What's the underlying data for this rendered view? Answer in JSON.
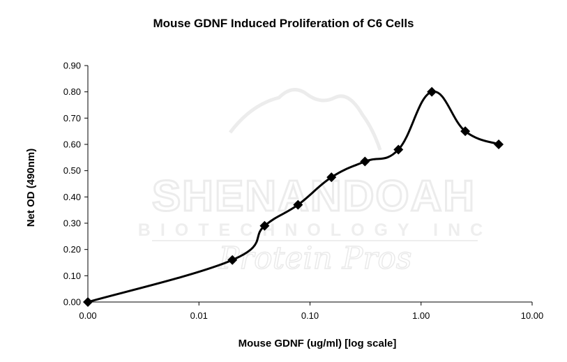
{
  "chart_data": {
    "type": "line",
    "title": "Mouse GDNF Induced Proliferation of C6 Cells",
    "xlabel": "Mouse GDNF (ug/ml) [log scale]",
    "ylabel": "Net OD (490nm)",
    "x_scale": "log",
    "x_tick_labels": [
      "0.00",
      "0.01",
      "0.10",
      "1.00",
      "10.00"
    ],
    "y_tick_labels": [
      "0.00",
      "0.10",
      "0.20",
      "0.30",
      "0.40",
      "0.50",
      "0.60",
      "0.70",
      "0.80",
      "0.90"
    ],
    "ylim": [
      0,
      0.9
    ],
    "grid": false,
    "marker": "diamond",
    "line_style": "smoothed",
    "series": [
      {
        "x": [
          0.001,
          0.02,
          0.039,
          0.078,
          0.156,
          0.3125,
          0.625,
          1.25,
          2.5,
          5.0
        ],
        "y": [
          0.0,
          0.16,
          0.29,
          0.37,
          0.475,
          0.535,
          0.58,
          0.8,
          0.65,
          0.6
        ],
        "color": "#000000"
      }
    ]
  },
  "watermark": {
    "line1": "SHENANDOAH",
    "line2": "BIOTECHNOLOGY INC",
    "line3": "Protein Pros"
  }
}
